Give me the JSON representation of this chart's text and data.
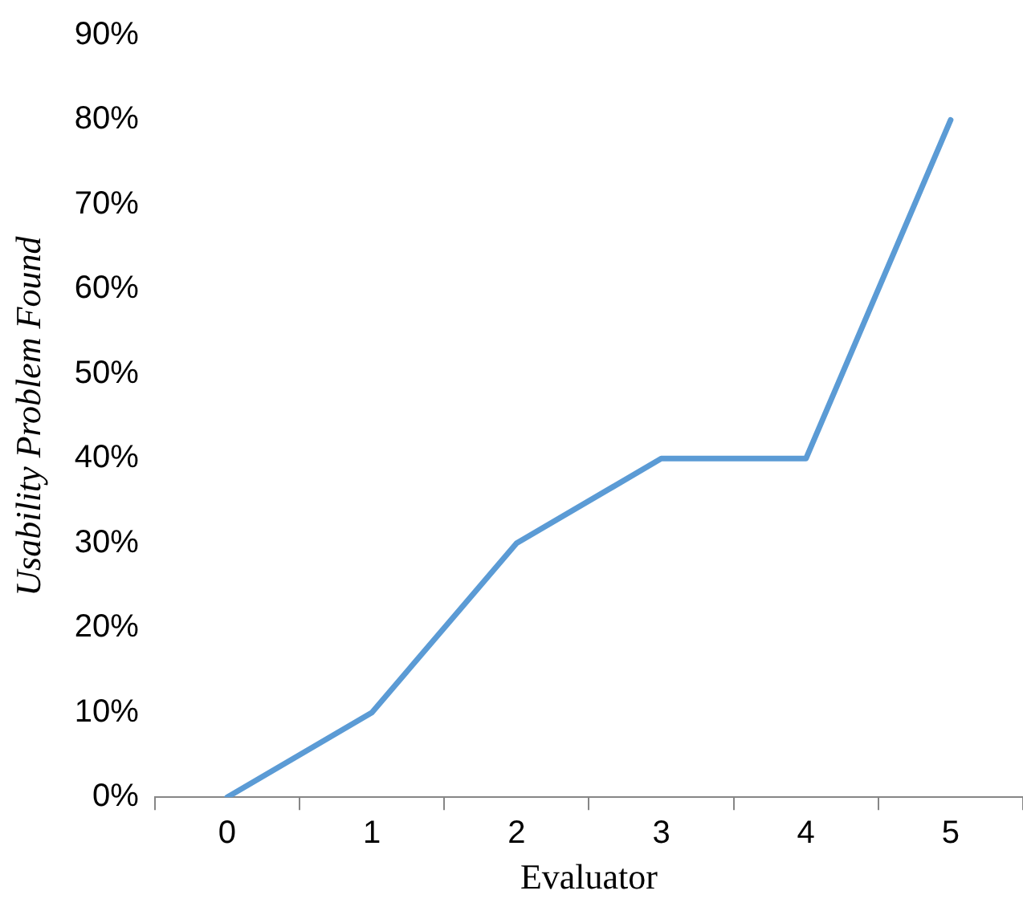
{
  "chart_data": {
    "type": "line",
    "xlabel": "Evaluator",
    "ylabel": "Usability Problem Found",
    "categories": [
      "0",
      "1",
      "2",
      "3",
      "4",
      "5"
    ],
    "series": [
      {
        "color": "#5b9bd5",
        "values": [
          0,
          10,
          30,
          40,
          40,
          80
        ]
      }
    ],
    "ylim": [
      0,
      90
    ],
    "yticks": [
      {
        "value": 0,
        "label": "0%"
      },
      {
        "value": 10,
        "label": "10%"
      },
      {
        "value": 20,
        "label": "20%"
      },
      {
        "value": 30,
        "label": "30%"
      },
      {
        "value": 40,
        "label": "40%"
      },
      {
        "value": 50,
        "label": "50%"
      },
      {
        "value": 60,
        "label": "60%"
      },
      {
        "value": 70,
        "label": "70%"
      },
      {
        "value": 80,
        "label": "80%"
      },
      {
        "value": 90,
        "label": "90%"
      }
    ],
    "grid": false,
    "legend": false,
    "marker": "none",
    "line_style": "solid"
  }
}
